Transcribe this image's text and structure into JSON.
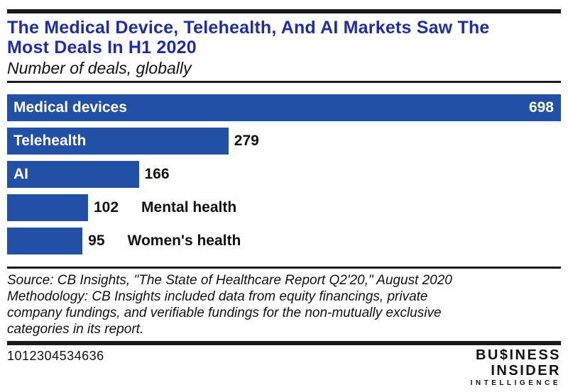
{
  "header": {
    "title": "The Medical Device, Telehealth, And AI Markets Saw The\nMost Deals In H1 2020",
    "subtitle": "Number of deals, globally"
  },
  "chart_data": {
    "type": "bar",
    "orientation": "horizontal",
    "title": "The Medical Device, Telehealth, And AI Markets Saw The Most Deals In H1 2020",
    "subtitle": "Number of deals, globally",
    "categories": [
      "Medical devices",
      "Telehealth",
      "AI",
      "Mental health",
      "Women's health"
    ],
    "values": [
      698,
      279,
      166,
      102,
      95
    ],
    "xlim": [
      0,
      698
    ],
    "grid": false,
    "legend": false,
    "bars": [
      {
        "label": "Medical devices",
        "value": 698,
        "label_position": "inside",
        "value_position": "inside"
      },
      {
        "label": "Telehealth",
        "value": 279,
        "label_position": "inside",
        "value_position": "outside"
      },
      {
        "label": "AI",
        "value": 166,
        "label_position": "inside",
        "value_position": "outside"
      },
      {
        "label": "Mental health",
        "value": 102,
        "label_position": "outside",
        "value_position": "outside"
      },
      {
        "label": "Women's health",
        "value": 95,
        "label_position": "outside",
        "value_position": "outside"
      }
    ]
  },
  "footer": {
    "source_text": "Source: CB Insights, \"The State of Healthcare Report Q2'20,\" August 2020\nMethodology: CB Insights included data from equity financings, private\ncompany fundings, and verifiable fundings for the non-mutually exclusive\ncategories in its report.",
    "document_id": "1012304534636",
    "logo": {
      "line1": "BU$INESS",
      "line2": "INSIDER",
      "line3": "INTELLIGENCE"
    }
  },
  "colors": {
    "title_blue": "#1F2DA8",
    "bar_blue": "#2150A6",
    "rule_black": "#1a1a1a",
    "text_black": "#111111"
  }
}
